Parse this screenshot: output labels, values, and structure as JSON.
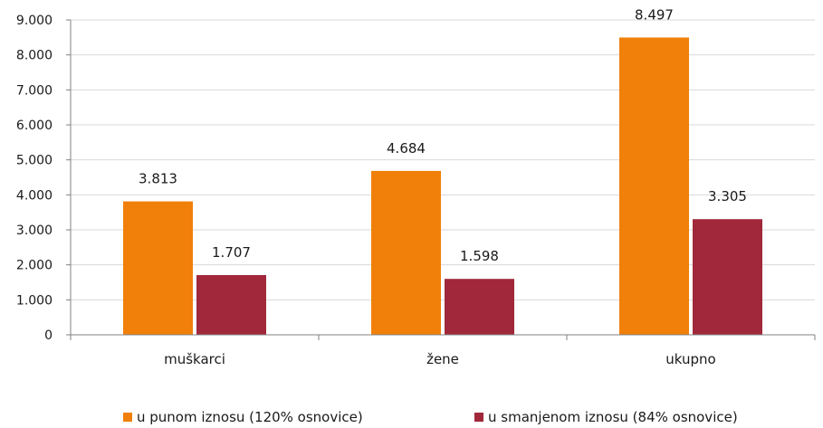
{
  "chart_data": {
    "type": "bar",
    "categories": [
      "muškarci",
      "žene",
      "ukupno"
    ],
    "series": [
      {
        "name": "u punom iznosu (120% osnovice)",
        "values": [
          3813,
          4684,
          8497
        ],
        "labels": [
          "3.813",
          "4.684",
          "8.497"
        ],
        "color": "#F0800A"
      },
      {
        "name": "u smanjenom iznosu (84% osnovice)",
        "values": [
          1707,
          1598,
          3305
        ],
        "labels": [
          "1.707",
          "1.598",
          "3.305"
        ],
        "color": "#A0283A"
      }
    ],
    "ylim": [
      0,
      9000
    ],
    "yticks": [
      0,
      1000,
      2000,
      3000,
      4000,
      5000,
      6000,
      7000,
      8000,
      9000
    ],
    "ytick_labels": [
      "0",
      "1.000",
      "2.000",
      "3.000",
      "4.000",
      "5.000",
      "6.000",
      "7.000",
      "8.000",
      "9.000"
    ],
    "grid": true,
    "legend_position": "bottom",
    "title": "",
    "xlabel": "",
    "ylabel": ""
  }
}
